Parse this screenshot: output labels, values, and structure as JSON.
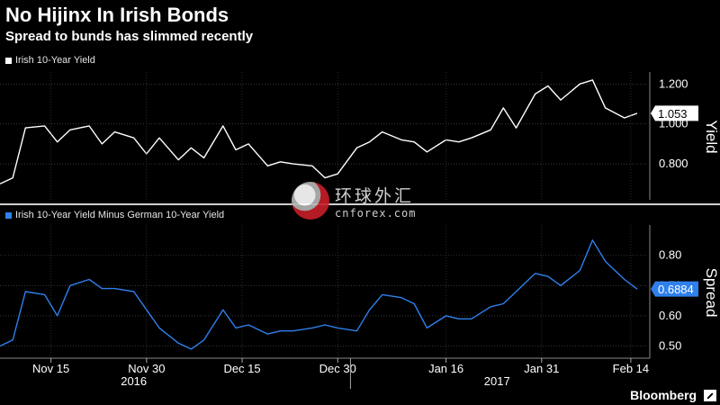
{
  "header": {
    "title": "No Hijinx In Irish Bonds",
    "subtitle": "Spread to bunds has slimmed recently"
  },
  "legend": {
    "top": "Irish 10-Year Yield",
    "bottom": "Irish 10-Year Yield Minus German 10-Year Yield"
  },
  "watermark": {
    "cn": "环球外汇",
    "en": "cnforex.com"
  },
  "brand": {
    "name": "Bloomberg"
  },
  "colors": {
    "top_series": "#ffffff",
    "bottom_series": "#2f80ed",
    "background": "#000000",
    "grid": "#555555"
  },
  "chart_data": [
    {
      "type": "line",
      "title": "No Hijinx In Irish Bonds",
      "subtitle": "Spread to bunds has slimmed recently",
      "ylabel": "Yield",
      "ylim": [
        0.62,
        1.26
      ],
      "yticks": [
        0.8,
        1.0,
        1.2
      ],
      "ytick_labels": [
        "0.800",
        "1.000",
        "1.200"
      ],
      "last_value_label": "1.053",
      "legend_placement": "top-left",
      "grid": true,
      "series": [
        {
          "name": "Irish 10-Year Yield",
          "color": "#ffffff",
          "x": [
            "2016-11-07",
            "2016-11-09",
            "2016-11-11",
            "2016-11-14",
            "2016-11-16",
            "2016-11-18",
            "2016-11-21",
            "2016-11-23",
            "2016-11-25",
            "2016-11-28",
            "2016-11-30",
            "2016-12-02",
            "2016-12-05",
            "2016-12-07",
            "2016-12-09",
            "2016-12-12",
            "2016-12-14",
            "2016-12-16",
            "2016-12-19",
            "2016-12-21",
            "2016-12-23",
            "2016-12-26",
            "2016-12-28",
            "2016-12-30",
            "2017-01-02",
            "2017-01-04",
            "2017-01-06",
            "2017-01-09",
            "2017-01-11",
            "2017-01-13",
            "2017-01-16",
            "2017-01-18",
            "2017-01-20",
            "2017-01-23",
            "2017-01-25",
            "2017-01-27",
            "2017-01-30",
            "2017-02-01",
            "2017-02-03",
            "2017-02-06",
            "2017-02-08",
            "2017-02-10",
            "2017-02-13",
            "2017-02-15"
          ],
          "y": [
            0.7,
            0.73,
            0.98,
            0.99,
            0.91,
            0.97,
            0.99,
            0.9,
            0.96,
            0.93,
            0.85,
            0.93,
            0.82,
            0.88,
            0.83,
            0.99,
            0.87,
            0.9,
            0.79,
            0.81,
            0.8,
            0.79,
            0.73,
            0.75,
            0.88,
            0.91,
            0.96,
            0.92,
            0.91,
            0.86,
            0.92,
            0.91,
            0.93,
            0.97,
            1.08,
            0.98,
            1.15,
            1.19,
            1.12,
            1.2,
            1.22,
            1.08,
            1.03,
            1.053
          ]
        }
      ]
    },
    {
      "type": "line",
      "ylabel": "Spread",
      "ylim": [
        0.46,
        0.9
      ],
      "yticks": [
        0.5,
        0.6,
        0.7,
        0.8
      ],
      "ytick_labels": [
        "0.50",
        "0.60",
        "0.70",
        "0.80"
      ],
      "last_value_label": "0.6884",
      "legend_placement": "top-left",
      "grid": true,
      "xtick_labels": [
        "Nov 15",
        "Nov 30",
        "Dec 15",
        "Dec 30",
        "Jan 16",
        "Jan 31",
        "Feb 14"
      ],
      "xtick_dates": [
        "2016-11-15",
        "2016-11-30",
        "2016-12-15",
        "2016-12-30",
        "2017-01-16",
        "2017-01-31",
        "2017-02-14"
      ],
      "year_labels": [
        "2016",
        "2017"
      ],
      "series": [
        {
          "name": "Irish 10-Year Yield Minus German 10-Year Yield",
          "color": "#2f80ed",
          "x": [
            "2016-11-07",
            "2016-11-09",
            "2016-11-11",
            "2016-11-14",
            "2016-11-16",
            "2016-11-18",
            "2016-11-21",
            "2016-11-23",
            "2016-11-25",
            "2016-11-28",
            "2016-11-30",
            "2016-12-02",
            "2016-12-05",
            "2016-12-07",
            "2016-12-09",
            "2016-12-12",
            "2016-12-14",
            "2016-12-16",
            "2016-12-19",
            "2016-12-21",
            "2016-12-23",
            "2016-12-26",
            "2016-12-28",
            "2016-12-30",
            "2017-01-02",
            "2017-01-04",
            "2017-01-06",
            "2017-01-09",
            "2017-01-11",
            "2017-01-13",
            "2017-01-16",
            "2017-01-18",
            "2017-01-20",
            "2017-01-23",
            "2017-01-25",
            "2017-01-27",
            "2017-01-30",
            "2017-02-01",
            "2017-02-03",
            "2017-02-06",
            "2017-02-08",
            "2017-02-10",
            "2017-02-13",
            "2017-02-15"
          ],
          "y": [
            0.5,
            0.52,
            0.68,
            0.67,
            0.6,
            0.7,
            0.72,
            0.69,
            0.69,
            0.68,
            0.62,
            0.56,
            0.51,
            0.49,
            0.52,
            0.62,
            0.56,
            0.57,
            0.54,
            0.55,
            0.55,
            0.56,
            0.57,
            0.56,
            0.55,
            0.62,
            0.67,
            0.66,
            0.64,
            0.56,
            0.6,
            0.59,
            0.59,
            0.63,
            0.64,
            0.68,
            0.74,
            0.73,
            0.7,
            0.75,
            0.85,
            0.78,
            0.72,
            0.6884
          ]
        }
      ]
    }
  ]
}
